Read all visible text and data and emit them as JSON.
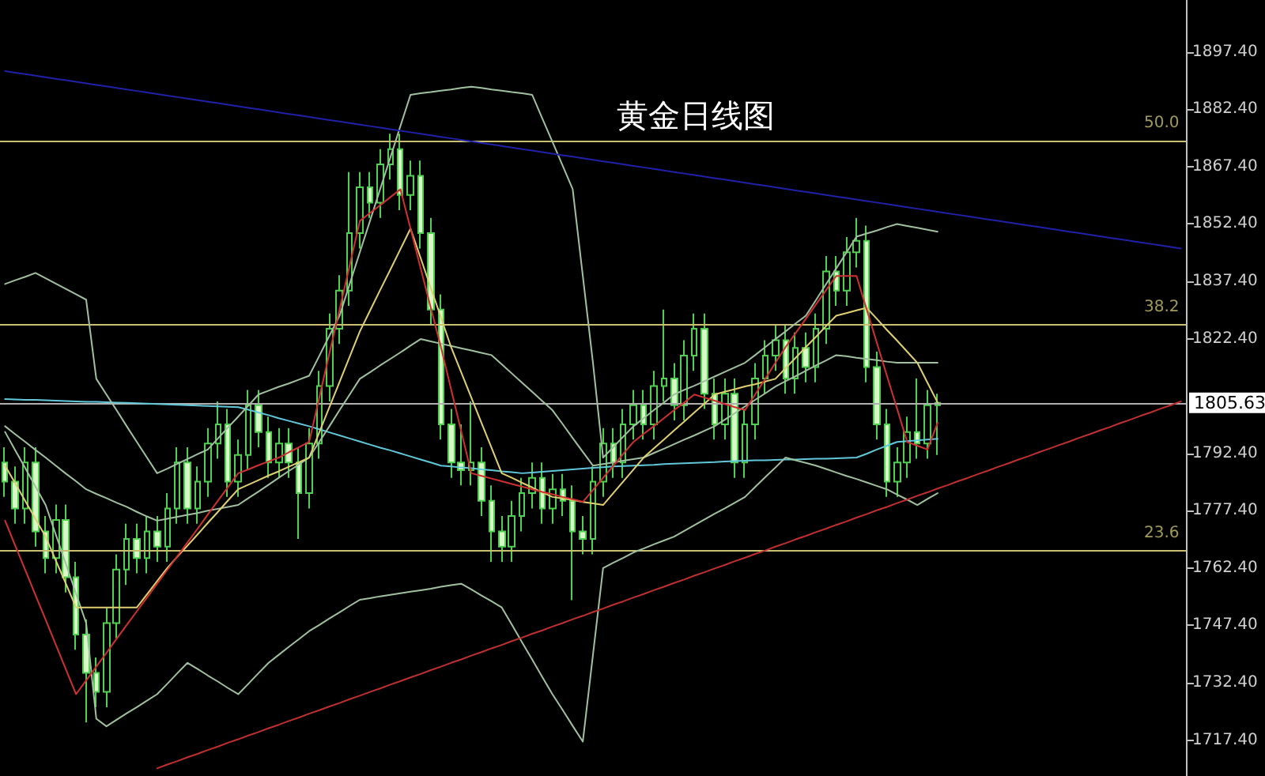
{
  "chart_data": {
    "type": "candlestick",
    "title": "黄金日线图",
    "tick_labels": "y",
    "categories": [
      null,
      null,
      null,
      null,
      null,
      null,
      null,
      null,
      null,
      null,
      null,
      null,
      null,
      null,
      null,
      null,
      null,
      null,
      null,
      null,
      null,
      null,
      null,
      null,
      null,
      null,
      null,
      null,
      null,
      null,
      null,
      null,
      null,
      null,
      null,
      null,
      null,
      null,
      null,
      null,
      null,
      null,
      null,
      null,
      null,
      null,
      null,
      null,
      null,
      null,
      null,
      null,
      null,
      null,
      null,
      null,
      null,
      null,
      null,
      null,
      null,
      null,
      null,
      null,
      null,
      null,
      null,
      null,
      null,
      null,
      null,
      null,
      null,
      null,
      null,
      null,
      null,
      null,
      null,
      null,
      null,
      null,
      null,
      null,
      null,
      null,
      null,
      null,
      null,
      null,
      null,
      null,
      null,
      null,
      null,
      null,
      null,
      null,
      null,
      null,
      null,
      null,
      null,
      null,
      null,
      null,
      null,
      null,
      null,
      null,
      null,
      null,
      null,
      null,
      null,
      null,
      null
    ],
    "ylim": [
      1708,
      1911
    ],
    "yticks": [
      {
        "value": 1717.4,
        "label": "1717.40"
      },
      {
        "value": 1732.4,
        "label": "1732.40"
      },
      {
        "value": 1747.4,
        "label": "1747.40"
      },
      {
        "value": 1762.4,
        "label": "1762.40"
      },
      {
        "value": 1777.4,
        "label": "1777.40"
      },
      {
        "value": 1792.4,
        "label": "1792.40"
      },
      {
        "value": 1822.4,
        "label": "1822.40"
      },
      {
        "value": 1837.4,
        "label": "1837.40"
      },
      {
        "value": 1852.4,
        "label": "1852.40"
      },
      {
        "value": 1867.4,
        "label": "1867.40"
      },
      {
        "value": 1882.4,
        "label": "1882.40"
      },
      {
        "value": 1897.4,
        "label": "1897.40"
      }
    ],
    "annotations": [
      {
        "text": "50.0",
        "y": 1874.3
      },
      {
        "text": "38.2",
        "y": 1826
      },
      {
        "text": "23.6",
        "y": 1766.9
      }
    ],
    "ref_lines": [
      {
        "axis": "y",
        "value": 1874.3,
        "color": "#c8c070"
      },
      {
        "axis": "y",
        "value": 1826,
        "color": "#c8c070"
      },
      {
        "axis": "y",
        "value": 1766.9,
        "color": "#c8c070"
      },
      {
        "axis": "y",
        "value": 1805.63,
        "label": "1805.63",
        "color": "#b0b0b0"
      }
    ],
    "series": [
      {
        "type": "line",
        "color": "#60c8d8",
        "values": [
          1806.6,
          1806.5,
          1806.4,
          1806.4,
          1806.3,
          1806.2,
          1806.1,
          1806.0,
          1805.9,
          1805.9,
          1805.8,
          1805.7,
          1805.6,
          1805.5,
          1805.4,
          1805.3,
          1805.2,
          1805.1,
          1805.0,
          1804.9,
          1804.8,
          1804.7,
          1804.6,
          1804.5,
          1803.8,
          1803.1,
          1802.4,
          1801.6,
          1800.9,
          1800.2,
          1799.5,
          1798.7,
          1797.9,
          1797.1,
          1796.3,
          1795.5,
          1794.7,
          1793.9,
          1793.2,
          1792.4,
          1791.6,
          1790.8,
          1790.0,
          1789.2,
          1789,
          1788.7,
          1788.5,
          1788.2,
          1788,
          1787.7,
          1787.5,
          1787.2,
          1787.4,
          1787.6,
          1787.8,
          1788,
          1788.2,
          1788.4,
          1788.6,
          1788.8,
          1789,
          1789.1,
          1789.2,
          1789.3,
          1789.4,
          1789.6,
          1789.7,
          1789.8,
          1789.9,
          1790,
          1790.1,
          1790.3,
          1790.4,
          1790.5,
          1790.6,
          1790.6,
          1790.7,
          1790.8,
          1790.8,
          1790.9,
          1791,
          1791,
          1791.1,
          1791.2,
          1791.3,
          1792.3,
          1793.4,
          1794.4,
          1795.4,
          1795.6,
          1795.8,
          1796,
          1796.2,
          null,
          null,
          null,
          null,
          null,
          null,
          null,
          null,
          null,
          null,
          null,
          null,
          null,
          null,
          null,
          null,
          null,
          null,
          null,
          null,
          null,
          null,
          null,
          null
        ]
      },
      {
        "type": "line",
        "color": "#a0c0a0",
        "values": [
          1836.7,
          1837.7,
          1838.6,
          1839.6,
          1838.2,
          1836.8,
          1835.4,
          1834.0,
          1832.6,
          1811.9,
          1807.8,
          1803.7,
          1799.5,
          1795.4,
          1791.3,
          1787.2,
          1788.4,
          1789.7,
          1790.9,
          1792.2,
          1793.4,
          1796.3,
          1799.2,
          1802.0,
          1804.9,
          1807.8,
          1808.8,
          1809.8,
          1810.7,
          1811.7,
          1812.7,
          1817.9,
          1823.2,
          1828.4,
          1836.7,
          1845.0,
          1853.2,
          1861.5,
          1869.7,
          1878.0,
          1886.2,
          1886.6,
          1886.9,
          1887.3,
          1887.6,
          1888.0,
          1888.3,
          1888.0,
          1887.6,
          1887.3,
          1886.9,
          1886.6,
          1886.2,
          1880.0,
          1873.9,
          1867.7,
          1861.5,
          1838.8,
          1816.1,
          1791.3,
          1794.0,
          1796.8,
          1799.5,
          1801.6,
          1803.7,
          1805.7,
          1807.8,
          1809.0,
          1810.1,
          1811.3,
          1812.5,
          1813.7,
          1814.9,
          1816.1,
          1818.1,
          1820.2,
          1822.3,
          1824.3,
          1826.4,
          1828.4,
          1832.5,
          1836.7,
          1840.8,
          1844.9,
          1849.1,
          1849.9,
          1850.7,
          1851.6,
          1852.4,
          1851.9,
          1851.4,
          1850.9,
          1850.4,
          null,
          null,
          null,
          null,
          null,
          null,
          null,
          null,
          null,
          null,
          null,
          null,
          null,
          null,
          null,
          null,
          null,
          null,
          null,
          null,
          null,
          null,
          null,
          null
        ]
      },
      {
        "type": "line",
        "color": "#a0c0a0",
        "values": [
          1799.5,
          1797.4,
          1795.4,
          1793.3,
          1791.3,
          1789.2,
          1787.1,
          1785.1,
          1783.0,
          1781.8,
          1780.7,
          1779.5,
          1778.4,
          1777.1,
          1775.9,
          1774.8,
          1775.3,
          1775.8,
          1776.3,
          1776.8,
          1777.4,
          1777.9,
          1778.4,
          1778.9,
          1780.7,
          1782.4,
          1784.2,
          1786.0,
          1787.8,
          1789.5,
          1791.3,
          1795.4,
          1799.5,
          1803.7,
          1807.8,
          1811.9,
          1813.6,
          1815.4,
          1817.1,
          1818.8,
          1820.6,
          1822.3,
          1821.7,
          1821.1,
          1820.5,
          1819.9,
          1819.3,
          1818.7,
          1818.1,
          1815.7,
          1813.3,
          1810.9,
          1808.5,
          1806.1,
          1803.7,
          1800.1,
          1796.4,
          1792.8,
          1789.2,
          1789.6,
          1790.0,
          1790.5,
          1790.9,
          1791.3,
          1792.5,
          1793.6,
          1794.8,
          1796.0,
          1797.1,
          1798.3,
          1799.5,
          1801.2,
          1802.9,
          1804.7,
          1806.4,
          1808.1,
          1809.9,
          1811.3,
          1812.6,
          1814.0,
          1815.4,
          1816.7,
          1818.1,
          1817.8,
          1817.4,
          1817.1,
          1816.8,
          1816.4,
          1816.1,
          1816.1,
          1816.1,
          1816.1,
          1816.1,
          null,
          null,
          null,
          null,
          null,
          null,
          null,
          null,
          null,
          null,
          null,
          null,
          null,
          null,
          null,
          null,
          null,
          null,
          null,
          null,
          null,
          null,
          null,
          null
        ]
      },
      {
        "type": "line",
        "color": "#a0c0a0",
        "values": [
          1798.0,
          1793.2,
          1788.5,
          1783.7,
          1778.9,
          1771.2,
          1763.5,
          1755.7,
          1748.0,
          1723.0,
          1721.0,
          1722.7,
          1724.4,
          1726.0,
          1727.7,
          1729.4,
          1732.1,
          1734.9,
          1737.6,
          1736.0,
          1734.3,
          1732.7,
          1731.0,
          1729.4,
          1732.1,
          1734.9,
          1737.6,
          1739.7,
          1741.8,
          1743.8,
          1745.9,
          1747.5,
          1749.2,
          1750.8,
          1752.5,
          1754.1,
          1754.5,
          1755.0,
          1755.4,
          1755.8,
          1756.2,
          1756.6,
          1757.0,
          1757.5,
          1757.9,
          1758.3,
          1756.8,
          1755.2,
          1753.7,
          1752.1,
          1747.6,
          1743.0,
          1738.5,
          1733.9,
          1729.4,
          1725.3,
          1721.1,
          1717.0,
          1739.7,
          1762.4,
          1763.8,
          1765.1,
          1766.5,
          1767.5,
          1768.6,
          1769.6,
          1770.6,
          1772.1,
          1773.6,
          1775.1,
          1776.6,
          1778.0,
          1779.5,
          1781.0,
          1783.6,
          1786.2,
          1788.7,
          1791.3,
          1790.6,
          1789.9,
          1789.2,
          1788.3,
          1787.4,
          1786.5,
          1785.7,
          1784.8,
          1783.9,
          1783.0,
          1781.6,
          1780.3,
          1778.9,
          1780.5,
          1782.0,
          null,
          null,
          null,
          null,
          null,
          null,
          null,
          null,
          null,
          null,
          null,
          null,
          null,
          null,
          null,
          null,
          null,
          null,
          null,
          null,
          null,
          null,
          null,
          null
        ]
      },
      {
        "type": "line",
        "color": "#e0d070",
        "values": [
          1789.2,
          1784.6,
          1779.9,
          1775.3,
          1770.6,
          1764.4,
          1758.3,
          1752.1,
          1752.1,
          1752.1,
          1752.1,
          1752.1,
          1752.1,
          1752.1,
          1755.5,
          1759.0,
          1762.4,
          1765.4,
          1768.3,
          1771.2,
          1774.2,
          1777.1,
          1780.1,
          1783.0,
          1784.2,
          1785.4,
          1786.6,
          1787.7,
          1788.9,
          1790.1,
          1791.3,
          1797.9,
          1804.5,
          1811.1,
          1817.7,
          1824.3,
          1829.7,
          1835.1,
          1840.4,
          1845.8,
          1851.2,
          1843.5,
          1835.7,
          1828.0,
          1820.2,
          1813.6,
          1807.0,
          1800.4,
          1793.8,
          1787.2,
          1786.0,
          1784.7,
          1783.5,
          1782.2,
          1781.0,
          1780.6,
          1780.2,
          1779.7,
          1779.3,
          1778.9,
          1782.0,
          1785.1,
          1788.2,
          1791.3,
          1793.7,
          1796.0,
          1798.4,
          1800.7,
          1803.1,
          1805.4,
          1807.8,
          1808.5,
          1809.2,
          1809.9,
          1810.5,
          1811.2,
          1811.9,
          1814.7,
          1817.4,
          1820.2,
          1822.9,
          1825.7,
          1828.4,
          1829.1,
          1829.8,
          1830.5,
          1827.6,
          1824.7,
          1821.9,
          1819.0,
          1816.1,
          1810.9,
          1805.7,
          null,
          null,
          null,
          null,
          null,
          null,
          null,
          null,
          null,
          null,
          null,
          null,
          null,
          null,
          null,
          null,
          null,
          null,
          null,
          null,
          null,
          null,
          null,
          null
        ]
      },
      {
        "type": "line",
        "color": "#d03030",
        "values": [
          1774.8,
          1768.3,
          1761.8,
          1755.3,
          1748.9,
          1742.4,
          1735.9,
          1729.4,
          1733.0,
          1736.6,
          1740.2,
          1743.9,
          1747.5,
          1751.1,
          1754.7,
          1758.3,
          1761.9,
          1765.5,
          1769.1,
          1772.7,
          1776.4,
          1780.0,
          1783.6,
          1787.2,
          1788.2,
          1789.3,
          1790.3,
          1791.3,
          1792.7,
          1794.0,
          1795.4,
          1807.0,
          1818.6,
          1830.0,
          1841.6,
          1853.2,
          1855.3,
          1857.3,
          1859.4,
          1861.5,
          1851.2,
          1840.8,
          1830.5,
          1820.2,
          1809.2,
          1798.2,
          1787.2,
          1786.5,
          1785.8,
          1785.1,
          1784.4,
          1783.7,
          1783.0,
          1782.3,
          1781.7,
          1781.0,
          1780.4,
          1779.7,
          1782.8,
          1786.0,
          1789.1,
          1792.3,
          1795.4,
          1797.5,
          1799.5,
          1801.6,
          1803.7,
          1805.7,
          1807.8,
          1807.0,
          1806.2,
          1805.3,
          1804.5,
          1803.7,
          1807.8,
          1811.9,
          1816.1,
          1820.2,
          1823.9,
          1827.6,
          1831.4,
          1835.1,
          1838.8,
          1838.8,
          1838.8,
          1830.1,
          1821.4,
          1812.7,
          1804.1,
          1795.4,
          1794.4,
          1793.4,
          1800.4,
          null,
          null,
          null,
          null,
          null,
          null,
          null,
          null,
          null,
          null,
          null,
          null,
          null,
          null,
          null,
          null,
          null,
          null,
          null,
          null,
          null,
          null,
          null,
          null
        ]
      },
      {
        "type": "line",
        "color": "#2020a8",
        "values": [
          1892.4,
          1892.0,
          1891.6,
          1891.2,
          1890.8,
          1890.4,
          1890.0,
          1889.6,
          1889.2,
          1888.8,
          1888.4,
          1888.0,
          1887.6,
          1887.2,
          1886.8,
          1886.4,
          1886.0,
          1885.6,
          1885.2,
          1884.8,
          1884.4,
          1884.0,
          1883.6,
          1883.2,
          1882.8,
          1882.4,
          1882.0,
          1881.6,
          1881.2,
          1880.8,
          1880.4,
          1880.0,
          1879.6,
          1879.2,
          1878.8,
          1878.4,
          1878.0,
          1877.6,
          1877.2,
          1876.8,
          1876.4,
          1876.0,
          1875.6,
          1875.2,
          1874.8,
          1874.4,
          1874.0,
          1873.6,
          1873.2,
          1872.8,
          1872.4,
          1872.0,
          1871.6,
          1871.2,
          1870.8,
          1870.4,
          1870.0,
          1869.6,
          1869.2,
          1868.8,
          1868.4,
          1868.0,
          1867.6,
          1867.2,
          1866.8,
          1866.4,
          1866.0,
          1865.6,
          1865.2,
          1864.8,
          1864.4,
          1864.0,
          1863.6,
          1863.2,
          1862.8,
          1862.4,
          1862.0,
          1861.6,
          1861.2,
          1860.8,
          1860.4,
          1860.0,
          1859.6,
          1859.2,
          1858.8,
          1858.4,
          1858.0,
          1857.6,
          1857.2,
          1856.8,
          1856.4,
          1856.0,
          1855.6,
          1855.2,
          1854.8,
          1854.4,
          1854.0,
          1853.6,
          1853.2,
          1852.8,
          1852.4,
          1852.0,
          1851.6,
          1851.2,
          1850.8,
          1850.4,
          1850.0,
          1849.6,
          1849.2,
          1848.8,
          1848.4,
          1848.0,
          1847.6,
          1847.2,
          1846.8,
          1846.4,
          1846.0
        ]
      },
      {
        "type": "line",
        "color": "#c03030",
        "values": [
          null,
          null,
          null,
          null,
          null,
          null,
          null,
          null,
          null,
          null,
          null,
          null,
          null,
          null,
          null,
          1710.0,
          1711.0,
          1711.9,
          1712.9,
          1713.8,
          1714.8,
          1715.7,
          1716.7,
          1717.6,
          1718.6,
          1719.5,
          1720.5,
          1721.4,
          1722.4,
          1723.3,
          1724.3,
          1725.2,
          1726.2,
          1727.1,
          1728.1,
          1729.0,
          1730.0,
          1730.9,
          1731.9,
          1732.8,
          1733.8,
          1734.7,
          1735.7,
          1736.6,
          1737.6,
          1738.5,
          1739.5,
          1740.4,
          1741.4,
          1742.3,
          1743.3,
          1744.2,
          1745.2,
          1746.1,
          1747.1,
          1748.0,
          1749.0,
          1749.9,
          1750.9,
          1751.8,
          1752.8,
          1753.7,
          1754.7,
          1755.6,
          1756.6,
          1757.5,
          1758.5,
          1759.4,
          1760.4,
          1761.3,
          1762.3,
          1763.2,
          1764.2,
          1765.1,
          1766.1,
          1767.0,
          1768.0,
          1768.9,
          1769.9,
          1770.8,
          1771.8,
          1772.7,
          1773.7,
          1774.6,
          1775.6,
          1776.5,
          1777.5,
          1778.4,
          1779.4,
          1780.3,
          1781.3,
          1782.2,
          1783.2,
          1784.1,
          1785.1,
          1786.0,
          1787.0,
          1787.9,
          1788.9,
          1789.8,
          1790.8,
          1791.7,
          1792.7,
          1793.6,
          1794.6,
          1795.5,
          1796.5,
          1797.4,
          1798.4,
          1799.3,
          1800.3,
          1801.2,
          1802.2,
          1803.1,
          1804.1,
          1805.0,
          1806.0
        ]
      },
      {
        "color": "#50d050",
        "ohlc": [
          [
            1790,
            1794,
            1781,
            1785
          ],
          [
            1785,
            1789,
            1774,
            1778
          ],
          [
            1778,
            1794,
            1774,
            1790
          ],
          [
            1790,
            1794,
            1768,
            1772
          ],
          [
            1772,
            1776,
            1761,
            1765
          ],
          [
            1765,
            1779,
            1761,
            1775
          ],
          [
            1775,
            1779,
            1756,
            1760
          ],
          [
            1760,
            1764,
            1741,
            1745
          ],
          [
            1745,
            1749,
            1722,
            1735
          ],
          [
            1735,
            1739,
            1726,
            1730
          ],
          [
            1730,
            1752,
            1726,
            1748
          ],
          [
            1748,
            1766,
            1744,
            1762
          ],
          [
            1762,
            1774,
            1758,
            1770
          ],
          [
            1770,
            1774,
            1761,
            1765
          ],
          [
            1765,
            1776,
            1761,
            1772
          ],
          [
            1772,
            1776,
            1764,
            1768
          ],
          [
            1768,
            1782,
            1764,
            1778
          ],
          [
            1778,
            1794,
            1774,
            1790
          ],
          [
            1790,
            1794,
            1774,
            1778
          ],
          [
            1778,
            1789,
            1774,
            1785
          ],
          [
            1785,
            1799,
            1781,
            1795
          ],
          [
            1795,
            1806,
            1791,
            1800
          ],
          [
            1800,
            1804,
            1781,
            1785
          ],
          [
            1785,
            1796,
            1781,
            1792
          ],
          [
            1792,
            1809,
            1788,
            1805
          ],
          [
            1805,
            1809,
            1794,
            1798
          ],
          [
            1798,
            1802,
            1786,
            1790
          ],
          [
            1790,
            1799,
            1786,
            1795
          ],
          [
            1795,
            1799,
            1786,
            1790
          ],
          [
            1790,
            1794,
            1770,
            1782
          ],
          [
            1782,
            1799,
            1778,
            1795
          ],
          [
            1795,
            1814,
            1791,
            1810
          ],
          [
            1810,
            1829,
            1806,
            1825
          ],
          [
            1825,
            1839,
            1821,
            1835
          ],
          [
            1835,
            1866,
            1831,
            1850
          ],
          [
            1850,
            1866,
            1846,
            1862
          ],
          [
            1862,
            1866,
            1854,
            1858
          ],
          [
            1858,
            1872,
            1854,
            1868
          ],
          [
            1868,
            1876,
            1864,
            1872
          ],
          [
            1872,
            1876,
            1856,
            1860
          ],
          [
            1860,
            1869,
            1856,
            1865
          ],
          [
            1865,
            1869,
            1846,
            1850
          ],
          [
            1850,
            1854,
            1826,
            1830
          ],
          [
            1830,
            1834,
            1796,
            1800
          ],
          [
            1800,
            1804,
            1786,
            1790
          ],
          [
            1790,
            1800,
            1784,
            1788
          ],
          [
            1788,
            1806,
            1784,
            1790
          ],
          [
            1790,
            1794,
            1776,
            1780
          ],
          [
            1780,
            1784,
            1764,
            1772
          ],
          [
            1772,
            1776,
            1764,
            1768
          ],
          [
            1768,
            1780,
            1764,
            1776
          ],
          [
            1776,
            1786,
            1772,
            1782
          ],
          [
            1782,
            1790,
            1778,
            1786
          ],
          [
            1786,
            1790,
            1774,
            1778
          ],
          [
            1778,
            1787,
            1774,
            1783
          ],
          [
            1783,
            1787,
            1776,
            1780
          ],
          [
            1780,
            1784,
            1754,
            1772
          ],
          [
            1772,
            1776,
            1766,
            1770
          ],
          [
            1770,
            1789,
            1766,
            1785
          ],
          [
            1785,
            1799,
            1781,
            1795
          ],
          [
            1795,
            1799,
            1786,
            1790
          ],
          [
            1790,
            1804,
            1786,
            1800
          ],
          [
            1800,
            1809,
            1796,
            1805
          ],
          [
            1805,
            1809,
            1796,
            1800
          ],
          [
            1800,
            1814,
            1796,
            1810
          ],
          [
            1810,
            1830,
            1806,
            1812
          ],
          [
            1812,
            1816,
            1801,
            1805
          ],
          [
            1805,
            1822,
            1801,
            1818
          ],
          [
            1818,
            1829,
            1814,
            1825
          ],
          [
            1825,
            1829,
            1804,
            1808
          ],
          [
            1808,
            1812,
            1796,
            1800
          ],
          [
            1800,
            1812,
            1796,
            1808
          ],
          [
            1808,
            1812,
            1786,
            1790
          ],
          [
            1790,
            1804,
            1786,
            1800
          ],
          [
            1800,
            1816,
            1796,
            1812
          ],
          [
            1812,
            1822,
            1808,
            1818
          ],
          [
            1818,
            1826,
            1814,
            1822
          ],
          [
            1822,
            1826,
            1808,
            1812
          ],
          [
            1812,
            1824,
            1808,
            1820
          ],
          [
            1820,
            1824,
            1811,
            1815
          ],
          [
            1815,
            1829,
            1811,
            1825
          ],
          [
            1825,
            1844,
            1821,
            1840
          ],
          [
            1840,
            1844,
            1831,
            1835
          ],
          [
            1835,
            1849,
            1831,
            1845
          ],
          [
            1845,
            1854,
            1841,
            1848
          ],
          [
            1848,
            1852,
            1811,
            1815
          ],
          [
            1815,
            1819,
            1796,
            1800
          ],
          [
            1800,
            1804,
            1781,
            1785
          ],
          [
            1785,
            1794,
            1781,
            1790
          ],
          [
            1790,
            1802,
            1786,
            1798
          ],
          [
            1798,
            1812,
            1791,
            1795
          ],
          [
            1795,
            1809,
            1791,
            1805
          ],
          [
            1805,
            1808,
            1792,
            1805.63
          ],
          null,
          null,
          null,
          null,
          null,
          null,
          null,
          null,
          null,
          null,
          null,
          null,
          null,
          null,
          null,
          null,
          null,
          null,
          null,
          null,
          null,
          null,
          null,
          null
        ]
      }
    ]
  }
}
